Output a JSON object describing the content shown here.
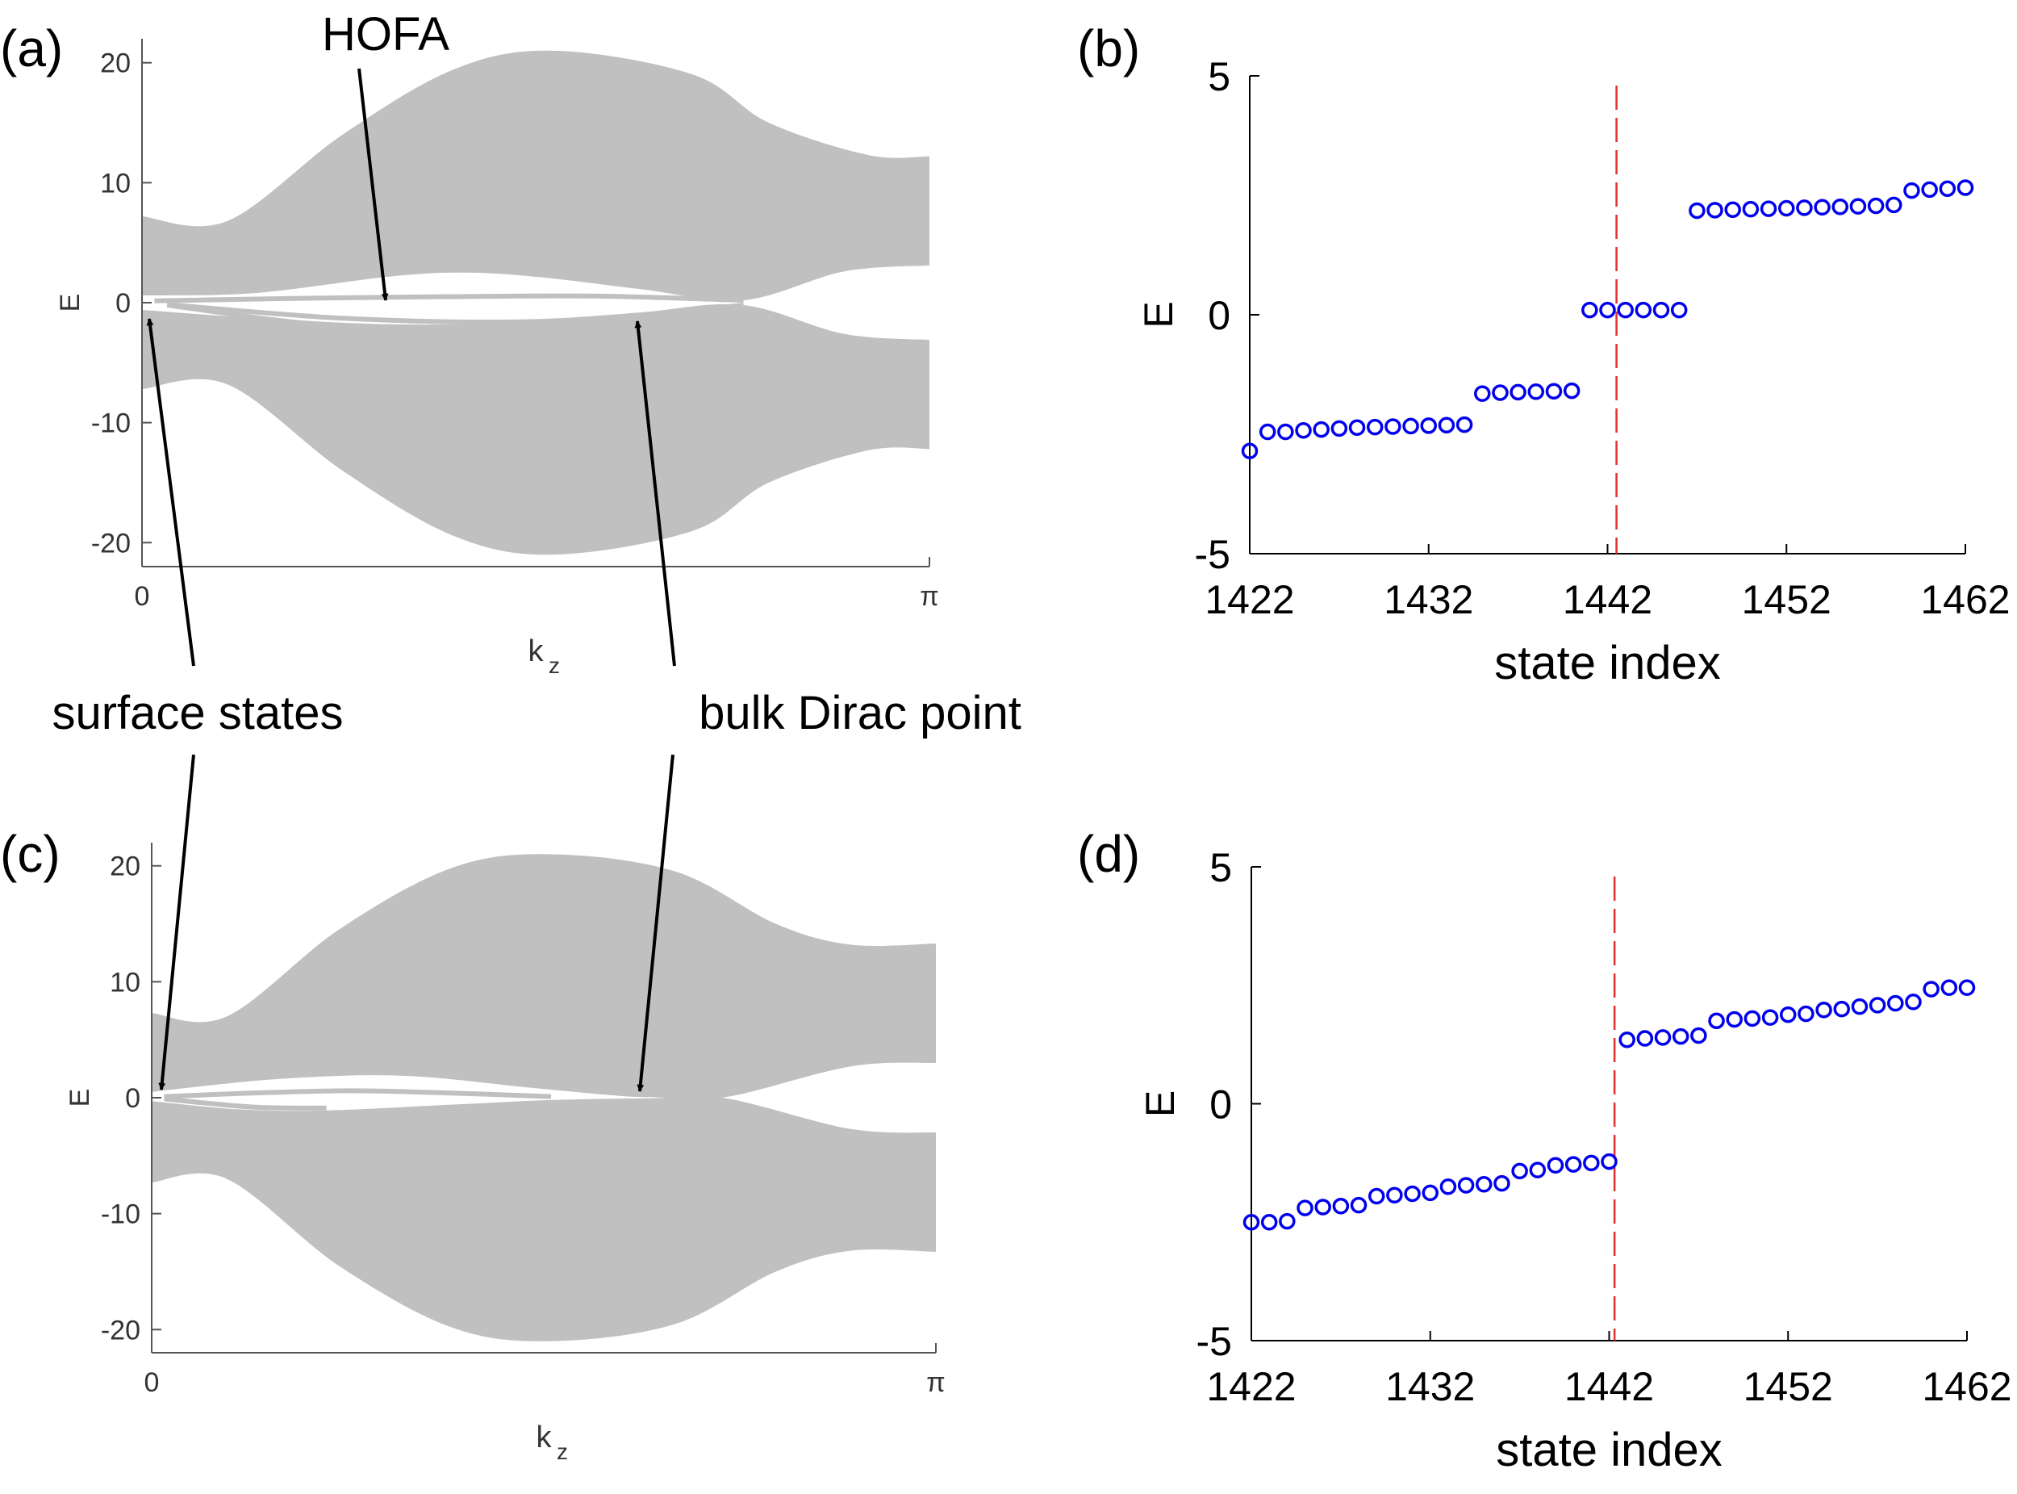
{
  "figure": {
    "panel_labels": {
      "a": "(a)",
      "b": "(b)",
      "c": "(c)",
      "d": "(d)"
    },
    "annotations": {
      "hofa": "HOFA",
      "surface_states": "surface states",
      "bulk_dirac_point": "bulk Dirac point"
    }
  },
  "chart_data": [
    {
      "id": "a",
      "type": "area",
      "title": "",
      "xlabel": "k",
      "xlabel_sub": "z",
      "ylabel": "E",
      "xlim": [
        0,
        3.1416
      ],
      "ylim": [
        -22,
        22
      ],
      "xticks": [
        {
          "v": 0,
          "label": "0"
        },
        {
          "v": 3.1416,
          "label": "π"
        }
      ],
      "yticks": [
        {
          "v": 20,
          "label": "20"
        },
        {
          "v": 10,
          "label": "10"
        },
        {
          "v": 0,
          "label": "0"
        },
        {
          "v": -10,
          "label": "-10"
        },
        {
          "v": -20,
          "label": "-20"
        }
      ],
      "band_color": "#c0c0c0",
      "upper_band": [
        [
          0,
          7.2
        ],
        [
          0.34,
          6.8
        ],
        [
          0.8,
          14
        ],
        [
          1.25,
          19.5
        ],
        [
          1.65,
          21
        ],
        [
          2.2,
          19
        ],
        [
          2.5,
          15
        ],
        [
          2.9,
          12.3
        ],
        [
          3.1416,
          12.2
        ]
      ],
      "upper_band_bottom": [
        [
          0,
          0.6
        ],
        [
          0.45,
          0.8
        ],
        [
          1,
          2.2
        ],
        [
          1.3,
          2.5
        ],
        [
          1.6,
          2.1
        ],
        [
          2.0,
          1.1
        ],
        [
          2.4,
          0.2
        ],
        [
          2.8,
          2.6
        ],
        [
          3.1416,
          3.1
        ]
      ],
      "lower_band_top": [
        [
          0,
          -0.6
        ],
        [
          0.4,
          -1.2
        ],
        [
          1,
          -1.8
        ],
        [
          1.6,
          -1.6
        ],
        [
          2.0,
          -0.8
        ],
        [
          2.4,
          -0.2
        ],
        [
          2.8,
          -2.6
        ],
        [
          3.1416,
          -3.1
        ]
      ],
      "lower_band_bottom": [
        [
          0,
          -7.2
        ],
        [
          0.34,
          -6.8
        ],
        [
          0.8,
          -14
        ],
        [
          1.25,
          -19.5
        ],
        [
          1.65,
          -21
        ],
        [
          2.2,
          -19
        ],
        [
          2.5,
          -15
        ],
        [
          2.9,
          -12.3
        ],
        [
          3.1416,
          -12.2
        ]
      ],
      "in_gap_curves": [
        [
          [
            0.05,
            0.15
          ],
          [
            0.6,
            0.35
          ],
          [
            1.2,
            0.5
          ],
          [
            1.8,
            0.55
          ],
          [
            2.4,
            0.2
          ]
        ],
        [
          [
            0.1,
            -0.2
          ],
          [
            0.6,
            -1.6
          ],
          [
            1.0,
            -2.1
          ],
          [
            1.3,
            -2.3
          ],
          [
            1.6,
            -1.9
          ]
        ],
        [
          [
            0.1,
            -0.15
          ],
          [
            0.8,
            -1.3
          ],
          [
            1.5,
            -1.6
          ],
          [
            2.0,
            -1.0
          ],
          [
            2.4,
            -0.2
          ]
        ]
      ]
    },
    {
      "id": "b",
      "type": "scatter",
      "xlabel": "state index",
      "ylabel": "E",
      "xlim": [
        1422,
        1462
      ],
      "ylim": [
        -5,
        5
      ],
      "xticks": [
        1422,
        1432,
        1442,
        1452,
        1462
      ],
      "yticks": [
        5,
        0,
        -5
      ],
      "vline": 1442.5,
      "marker_color": "#0000ee",
      "line_color": "#e03030",
      "x": [
        1422,
        1423,
        1424,
        1425,
        1426,
        1427,
        1428,
        1429,
        1430,
        1431,
        1432,
        1433,
        1434,
        1435,
        1436,
        1437,
        1438,
        1439,
        1440,
        1441,
        1442,
        1443,
        1444,
        1445,
        1446,
        1447,
        1448,
        1449,
        1450,
        1451,
        1452,
        1453,
        1454,
        1455,
        1456,
        1457,
        1458,
        1459,
        1460,
        1461,
        1462
      ],
      "y": [
        -2.85,
        -2.45,
        -2.45,
        -2.42,
        -2.4,
        -2.38,
        -2.36,
        -2.35,
        -2.34,
        -2.33,
        -2.32,
        -2.31,
        -2.3,
        -1.65,
        -1.63,
        -1.62,
        -1.61,
        -1.6,
        -1.59,
        0.1,
        0.1,
        0.1,
        0.1,
        0.1,
        0.1,
        2.18,
        2.19,
        2.2,
        2.21,
        2.22,
        2.23,
        2.24,
        2.25,
        2.26,
        2.27,
        2.28,
        2.3,
        2.6,
        2.62,
        2.64,
        2.66
      ]
    },
    {
      "id": "c",
      "type": "area",
      "title": "",
      "xlabel": "k",
      "xlabel_sub": "z",
      "ylabel": "E",
      "xlim": [
        0,
        3.1416
      ],
      "ylim": [
        -22,
        22
      ],
      "xticks": [
        {
          "v": 0,
          "label": "0"
        },
        {
          "v": 3.1416,
          "label": "π"
        }
      ],
      "yticks": [
        {
          "v": 20,
          "label": "20"
        },
        {
          "v": 10,
          "label": "10"
        },
        {
          "v": 0,
          "label": "0"
        },
        {
          "v": -10,
          "label": "-10"
        },
        {
          "v": -20,
          "label": "-20"
        }
      ],
      "band_color": "#c0c0c0",
      "upper_band": [
        [
          0,
          7.3
        ],
        [
          0.3,
          7
        ],
        [
          0.75,
          14.5
        ],
        [
          1.2,
          19.8
        ],
        [
          1.6,
          21
        ],
        [
          2.1,
          19.5
        ],
        [
          2.5,
          15
        ],
        [
          2.8,
          13.2
        ],
        [
          3.1416,
          13.3
        ]
      ],
      "upper_band_bottom": [
        [
          0,
          0.5
        ],
        [
          0.5,
          1.6
        ],
        [
          1.0,
          1.9
        ],
        [
          1.5,
          0.9
        ],
        [
          1.85,
          0.2
        ],
        [
          2.0,
          0.05
        ],
        [
          2.3,
          0.05
        ],
        [
          2.8,
          2.7
        ],
        [
          3.1416,
          3.0
        ]
      ],
      "lower_band_top": [
        [
          0,
          -0.3
        ],
        [
          0.35,
          -1.0
        ],
        [
          0.7,
          -1.1
        ],
        [
          1.2,
          -0.6
        ],
        [
          1.6,
          -0.2
        ],
        [
          2.0,
          -0.05
        ],
        [
          2.3,
          -0.05
        ],
        [
          2.8,
          -2.7
        ],
        [
          3.1416,
          -3.0
        ]
      ],
      "lower_band_bottom": [
        [
          0,
          -7.3
        ],
        [
          0.3,
          -7
        ],
        [
          0.75,
          -14.5
        ],
        [
          1.2,
          -19.8
        ],
        [
          1.6,
          -21
        ],
        [
          2.1,
          -19.5
        ],
        [
          2.5,
          -15
        ],
        [
          2.8,
          -13.2
        ],
        [
          3.1416,
          -13.3
        ]
      ],
      "in_gap_curves": [
        [
          [
            0.05,
            0.1
          ],
          [
            0.4,
            0.4
          ],
          [
            0.8,
            0.6
          ],
          [
            1.2,
            0.4
          ],
          [
            1.6,
            0.1
          ]
        ],
        [
          [
            0.05,
            -0.1
          ],
          [
            0.4,
            -0.8
          ],
          [
            0.7,
            -0.9
          ]
        ]
      ]
    },
    {
      "id": "d",
      "type": "scatter",
      "xlabel": "state index",
      "ylabel": "E",
      "xlim": [
        1422,
        1462
      ],
      "ylim": [
        -5,
        5
      ],
      "xticks": [
        1422,
        1432,
        1442,
        1452,
        1462
      ],
      "yticks": [
        5,
        0,
        -5
      ],
      "vline": 1442.3,
      "marker_color": "#0000ee",
      "line_color": "#e03030",
      "x": [
        1422,
        1423,
        1424,
        1425,
        1426,
        1427,
        1428,
        1429,
        1430,
        1431,
        1432,
        1433,
        1434,
        1435,
        1436,
        1437,
        1438,
        1439,
        1440,
        1441,
        1442,
        1443,
        1444,
        1445,
        1446,
        1447,
        1448,
        1449,
        1450,
        1451,
        1452,
        1453,
        1454,
        1455,
        1456,
        1457,
        1458,
        1459,
        1460,
        1461,
        1462
      ],
      "y": [
        -2.5,
        -2.5,
        -2.48,
        -2.2,
        -2.18,
        -2.16,
        -2.14,
        -1.95,
        -1.93,
        -1.9,
        -1.88,
        -1.75,
        -1.72,
        -1.7,
        -1.68,
        -1.42,
        -1.4,
        -1.3,
        -1.28,
        -1.25,
        -1.22,
        1.35,
        1.38,
        1.4,
        1.42,
        1.44,
        1.75,
        1.78,
        1.8,
        1.82,
        1.88,
        1.9,
        1.98,
        2.0,
        2.05,
        2.08,
        2.12,
        2.15,
        2.42,
        2.45,
        2.45
      ]
    }
  ]
}
